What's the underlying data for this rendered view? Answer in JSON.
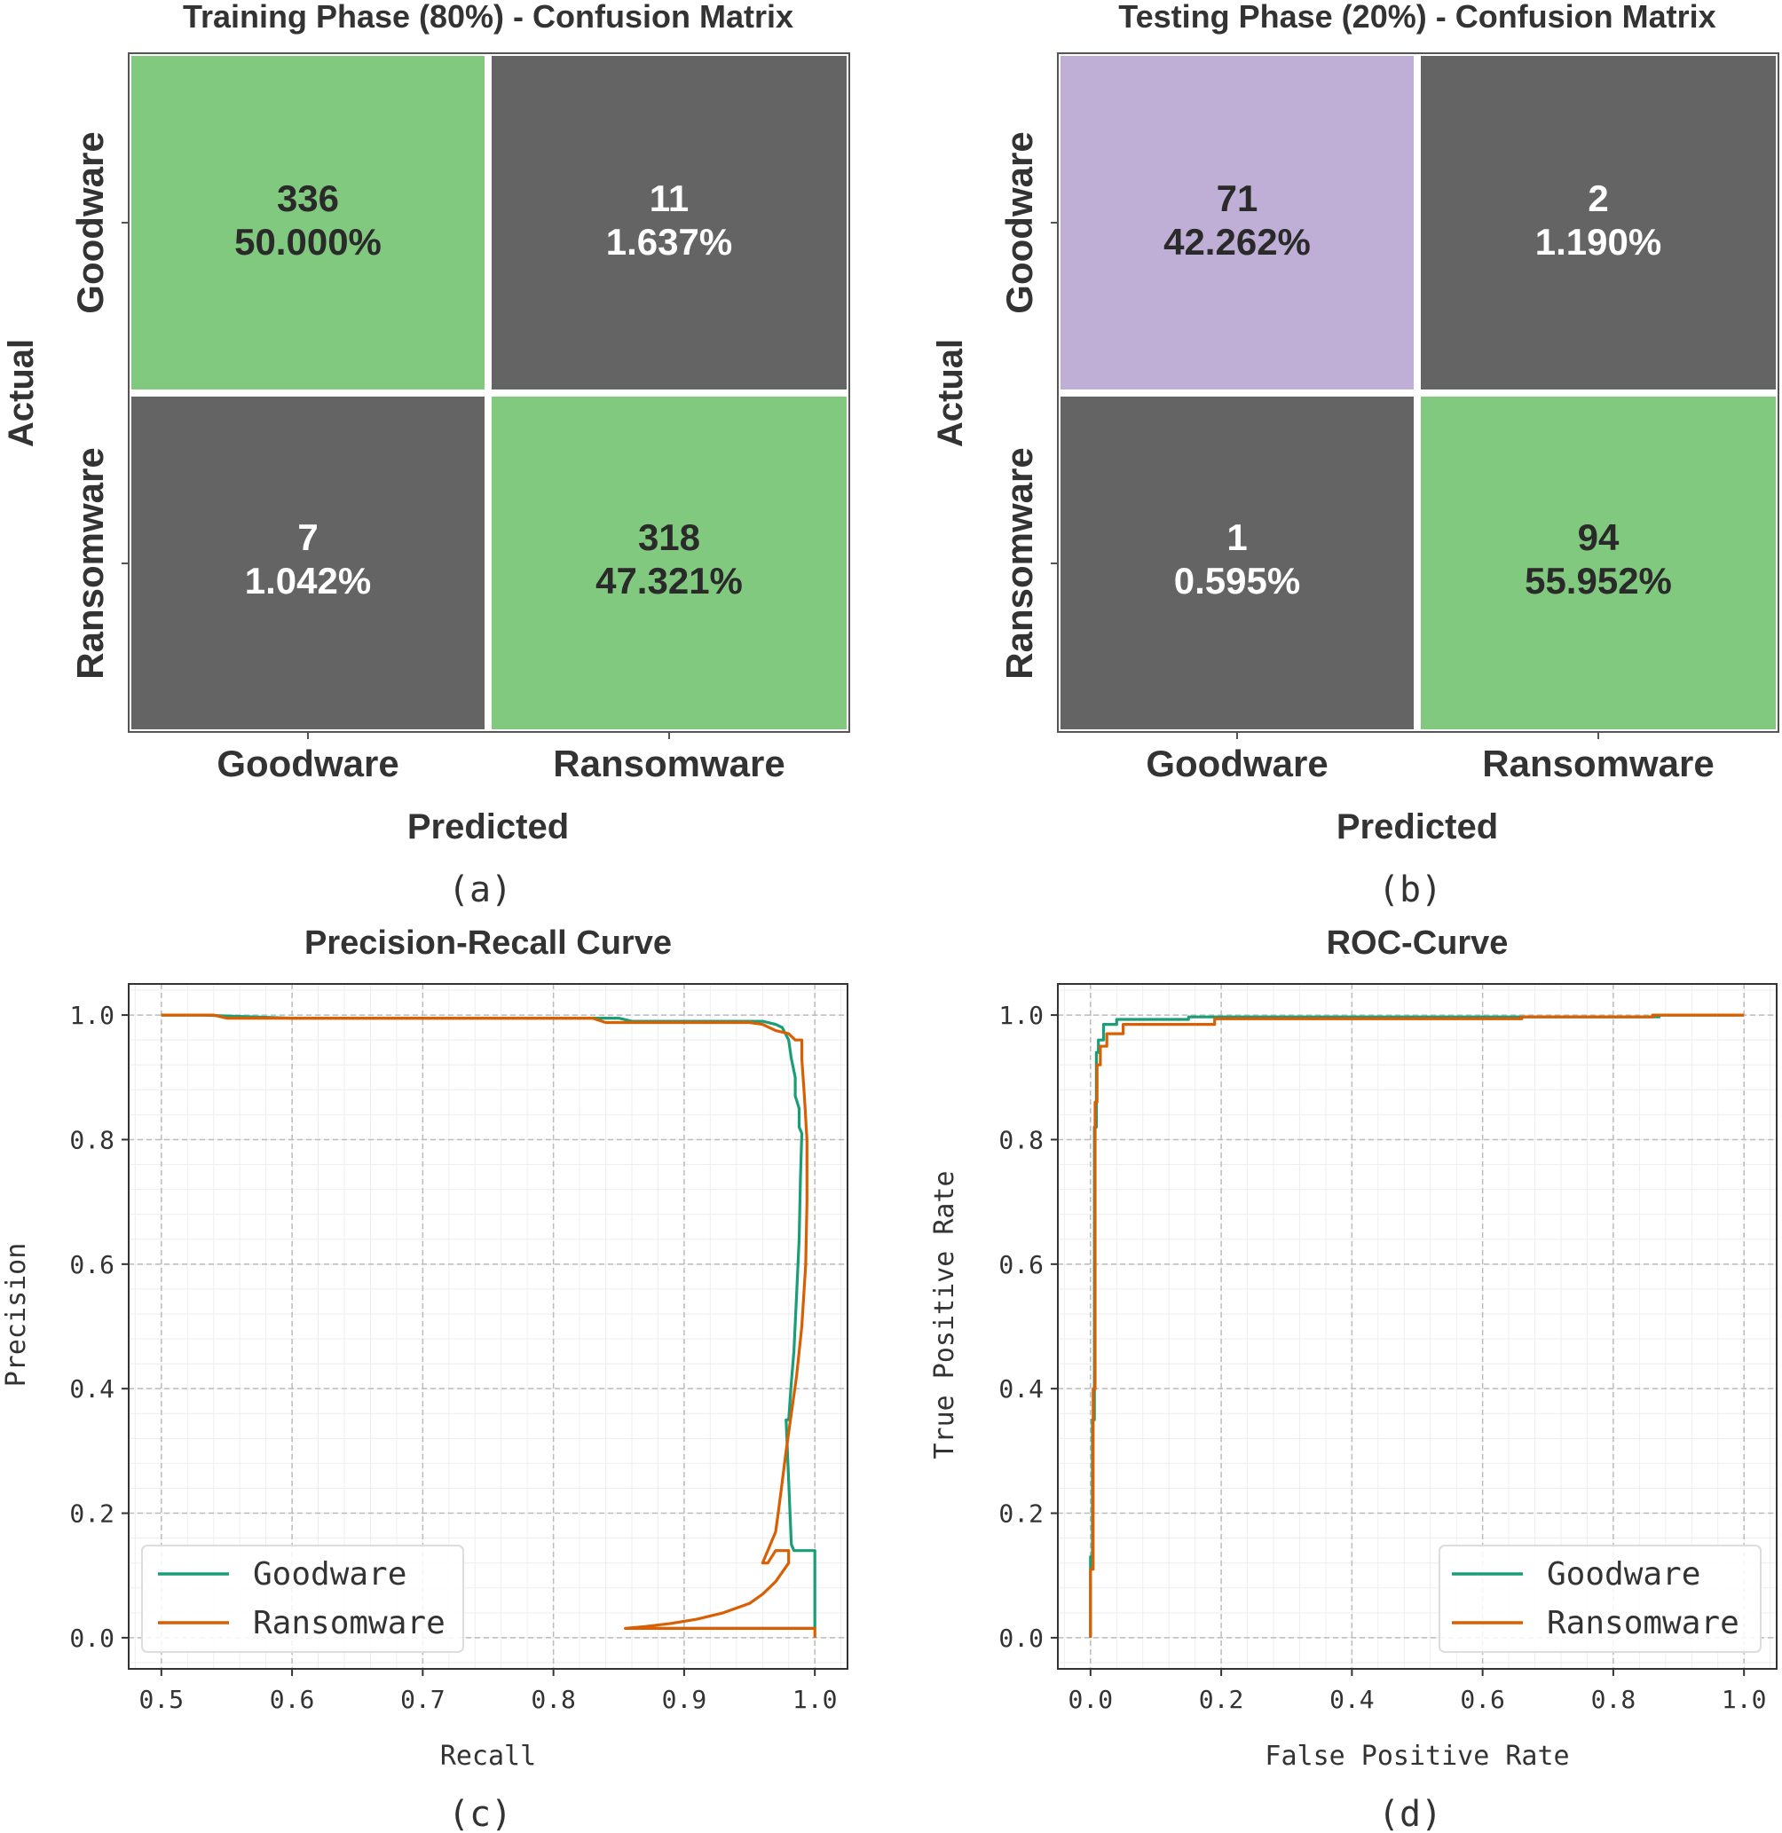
{
  "captions": [
    "(a)",
    "(b)",
    "(c)",
    "(d)"
  ],
  "chart_data": [
    {
      "type": "heatmap",
      "title": "Training Phase (80%) - Confusion Matrix",
      "xlabel": "Predicted",
      "ylabel": "Actual",
      "x_categories": [
        "Goodware",
        "Ransomware"
      ],
      "y_categories": [
        "Goodware",
        "Ransomware"
      ],
      "cells": [
        [
          {
            "count": "336",
            "percent": "50.000%",
            "color": "#81c97f"
          },
          {
            "count": "11",
            "percent": "1.637%",
            "color": "#646464"
          }
        ],
        [
          {
            "count": "7",
            "percent": "1.042%",
            "color": "#646464"
          },
          {
            "count": "318",
            "percent": "47.321%",
            "color": "#81c97f"
          }
        ]
      ]
    },
    {
      "type": "heatmap",
      "title": "Testing Phase (20%) - Confusion Matrix",
      "xlabel": "Predicted",
      "ylabel": "Actual",
      "x_categories": [
        "Goodware",
        "Ransomware"
      ],
      "y_categories": [
        "Goodware",
        "Ransomware"
      ],
      "cells": [
        [
          {
            "count": "71",
            "percent": "42.262%",
            "color": "#bfaed5"
          },
          {
            "count": "2",
            "percent": "1.190%",
            "color": "#646464"
          }
        ],
        [
          {
            "count": "1",
            "percent": "0.595%",
            "color": "#646464"
          },
          {
            "count": "94",
            "percent": "55.952%",
            "color": "#81c97f"
          }
        ]
      ]
    },
    {
      "type": "line",
      "title": "Precision-Recall Curve",
      "xlabel": "Recall",
      "ylabel": "Precision",
      "xlim": [
        0.475,
        1.025
      ],
      "ylim": [
        -0.05,
        1.05
      ],
      "xticks": [
        "0.5",
        "0.6",
        "0.7",
        "0.8",
        "0.9",
        "1.0"
      ],
      "yticks": [
        "0.0",
        "0.2",
        "0.4",
        "0.6",
        "0.8",
        "1.0"
      ],
      "grid": true,
      "legend": "lower-left",
      "series": [
        {
          "name": "Goodware",
          "color": "#1b9e77",
          "x": [
            0.5,
            0.53,
            0.6,
            0.85,
            0.86,
            0.96,
            0.97,
            0.975,
            0.98,
            0.982,
            0.985,
            0.985,
            0.988,
            0.988,
            0.99,
            0.989,
            0.988,
            0.986,
            0.984,
            0.982,
            0.98,
            0.978,
            0.982,
            0.984,
            0.988,
            0.99,
            1.0,
            1.0,
            0.86
          ],
          "y": [
            1.0,
            1.0,
            0.995,
            0.995,
            0.99,
            0.99,
            0.985,
            0.98,
            0.96,
            0.93,
            0.9,
            0.87,
            0.85,
            0.82,
            0.81,
            0.74,
            0.64,
            0.55,
            0.46,
            0.41,
            0.35,
            0.35,
            0.15,
            0.14,
            0.14,
            0.14,
            0.14,
            0.015,
            0.015
          ]
        },
        {
          "name": "Ransomware",
          "color": "#d95f02",
          "x": [
            0.5,
            0.54,
            0.55,
            0.6,
            0.83,
            0.84,
            0.95,
            0.96,
            0.97,
            0.98,
            0.985,
            0.99,
            0.99,
            0.992,
            0.994,
            0.994,
            0.993,
            0.99,
            0.986,
            0.982,
            0.978,
            0.975,
            0.972,
            0.97,
            0.966,
            0.96,
            0.964,
            0.97,
            0.98,
            0.98,
            0.97,
            0.96,
            0.95,
            0.93,
            0.91,
            0.89,
            0.87,
            0.855,
            1.0,
            1.0
          ],
          "y": [
            1.0,
            1.0,
            0.995,
            0.995,
            0.995,
            0.988,
            0.988,
            0.985,
            0.975,
            0.97,
            0.96,
            0.96,
            0.93,
            0.87,
            0.8,
            0.7,
            0.6,
            0.5,
            0.42,
            0.36,
            0.3,
            0.25,
            0.2,
            0.17,
            0.15,
            0.12,
            0.12,
            0.14,
            0.14,
            0.12,
            0.09,
            0.07,
            0.055,
            0.04,
            0.03,
            0.023,
            0.018,
            0.015,
            0.015,
            0.0
          ]
        }
      ]
    },
    {
      "type": "line",
      "title": "ROC-Curve",
      "xlabel": "False Positive Rate",
      "ylabel": "True Positive Rate",
      "xlim": [
        -0.05,
        1.05
      ],
      "ylim": [
        -0.05,
        1.05
      ],
      "xticks": [
        "0.0",
        "0.2",
        "0.4",
        "0.6",
        "0.8",
        "1.0"
      ],
      "yticks": [
        "0.0",
        "0.2",
        "0.4",
        "0.6",
        "0.8",
        "1.0"
      ],
      "grid": true,
      "legend": "lower-right",
      "series": [
        {
          "name": "Goodware",
          "color": "#1b9e77",
          "x": [
            0.0,
            0.0,
            0.003,
            0.003,
            0.006,
            0.006,
            0.009,
            0.009,
            0.012,
            0.012,
            0.02,
            0.02,
            0.04,
            0.04,
            0.15,
            0.15,
            0.87,
            0.87,
            1.0
          ],
          "y": [
            0.0,
            0.13,
            0.13,
            0.35,
            0.35,
            0.82,
            0.82,
            0.94,
            0.94,
            0.96,
            0.96,
            0.985,
            0.985,
            0.993,
            0.993,
            0.997,
            0.997,
            1.0,
            1.0
          ]
        },
        {
          "name": "Ransomware",
          "color": "#d95f02",
          "x": [
            0.0,
            0.0,
            0.004,
            0.004,
            0.007,
            0.007,
            0.01,
            0.01,
            0.015,
            0.015,
            0.025,
            0.025,
            0.05,
            0.05,
            0.19,
            0.19,
            0.66,
            0.66,
            0.86,
            0.86,
            1.0
          ],
          "y": [
            0.0,
            0.11,
            0.11,
            0.4,
            0.4,
            0.86,
            0.86,
            0.92,
            0.92,
            0.95,
            0.95,
            0.97,
            0.97,
            0.985,
            0.985,
            0.994,
            0.994,
            0.997,
            0.997,
            1.0,
            1.0
          ]
        }
      ]
    }
  ]
}
